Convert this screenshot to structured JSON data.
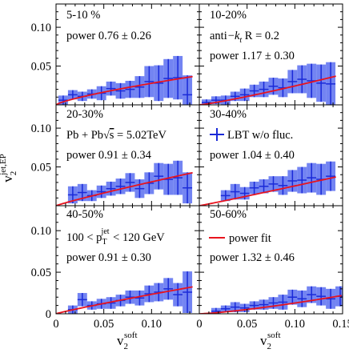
{
  "figure": {
    "y_axis_title": "v",
    "y_axis_sub": "2",
    "y_axis_sup": "jet,EP",
    "x_axis_title": "v",
    "x_axis_sub": "2",
    "x_axis_sup": "soft"
  },
  "legend": {
    "lbt_label": "LBT w/o fluc.",
    "fit_label": "power fit"
  },
  "chart_data": [
    {
      "type": "scatter",
      "panel": "top-left",
      "annotations": [
        "5-10 %",
        "power 0.76 ± 0.26"
      ],
      "xlim": [
        0,
        0.15
      ],
      "ylim": [
        0,
        0.13
      ],
      "x_ticks": [
        "0",
        "0.05",
        "0.10",
        "0.15"
      ],
      "y_ticks": [
        "0",
        "0.05",
        "0.10"
      ],
      "points": [
        {
          "x": 0.0075,
          "y": 0.006,
          "yerr": 0.006
        },
        {
          "x": 0.0175,
          "y": 0.013,
          "yerr": 0.006
        },
        {
          "x": 0.0275,
          "y": 0.011,
          "yerr": 0.006
        },
        {
          "x": 0.0375,
          "y": 0.014,
          "yerr": 0.006
        },
        {
          "x": 0.0475,
          "y": 0.015,
          "yerr": 0.009
        },
        {
          "x": 0.0575,
          "y": 0.021,
          "yerr": 0.009
        },
        {
          "x": 0.0675,
          "y": 0.018,
          "yerr": 0.01
        },
        {
          "x": 0.0775,
          "y": 0.02,
          "yerr": 0.011
        },
        {
          "x": 0.0875,
          "y": 0.023,
          "yerr": 0.014
        },
        {
          "x": 0.0975,
          "y": 0.03,
          "yerr": 0.02
        },
        {
          "x": 0.1075,
          "y": 0.028,
          "yerr": 0.023
        },
        {
          "x": 0.1175,
          "y": 0.034,
          "yerr": 0.025
        },
        {
          "x": 0.1275,
          "y": 0.035,
          "yerr": 0.028
        },
        {
          "x": 0.1375,
          "y": 0.013,
          "yerr": 0.025
        }
      ],
      "fit": {
        "power": 0.76,
        "amplitude": 0.16,
        "x_end": 0.143
      }
    },
    {
      "type": "scatter",
      "panel": "top-right",
      "annotations": [
        "10-20%",
        "anti−kt R = 0.2",
        "power 1.17 ± 0.30"
      ],
      "xlim": [
        0,
        0.15
      ],
      "ylim": [
        0,
        0.13
      ],
      "points": [
        {
          "x": 0.0075,
          "y": 0.003,
          "yerr": 0.004
        },
        {
          "x": 0.0175,
          "y": 0.006,
          "yerr": 0.005
        },
        {
          "x": 0.0275,
          "y": 0.006,
          "yerr": 0.006
        },
        {
          "x": 0.0375,
          "y": 0.011,
          "yerr": 0.006
        },
        {
          "x": 0.0475,
          "y": 0.013,
          "yerr": 0.008
        },
        {
          "x": 0.0575,
          "y": 0.018,
          "yerr": 0.008
        },
        {
          "x": 0.0675,
          "y": 0.02,
          "yerr": 0.01
        },
        {
          "x": 0.0775,
          "y": 0.024,
          "yerr": 0.011
        },
        {
          "x": 0.0875,
          "y": 0.022,
          "yerr": 0.012
        },
        {
          "x": 0.0975,
          "y": 0.03,
          "yerr": 0.015
        },
        {
          "x": 0.1075,
          "y": 0.033,
          "yerr": 0.018
        },
        {
          "x": 0.1175,
          "y": 0.031,
          "yerr": 0.022
        },
        {
          "x": 0.1275,
          "y": 0.028,
          "yerr": 0.024
        },
        {
          "x": 0.1375,
          "y": 0.027,
          "yerr": 0.028
        }
      ],
      "fit": {
        "power": 1.17,
        "amplitude": 0.36,
        "x_end": 0.143
      }
    },
    {
      "type": "scatter",
      "panel": "middle-left",
      "annotations": [
        "20-30%",
        "Pb + Pb√s = 5.02TeV",
        "power 0.91 ± 0.34"
      ],
      "xlim": [
        0,
        0.15
      ],
      "ylim": [
        0,
        0.13
      ],
      "points": [
        {
          "x": 0.0175,
          "y": 0.014,
          "yerr": 0.011
        },
        {
          "x": 0.0275,
          "y": 0.017,
          "yerr": 0.011
        },
        {
          "x": 0.0375,
          "y": 0.013,
          "yerr": 0.007
        },
        {
          "x": 0.0475,
          "y": 0.018,
          "yerr": 0.008
        },
        {
          "x": 0.0575,
          "y": 0.022,
          "yerr": 0.009
        },
        {
          "x": 0.0675,
          "y": 0.025,
          "yerr": 0.01
        },
        {
          "x": 0.0775,
          "y": 0.03,
          "yerr": 0.012
        },
        {
          "x": 0.0875,
          "y": 0.022,
          "yerr": 0.012
        },
        {
          "x": 0.0975,
          "y": 0.029,
          "yerr": 0.014
        },
        {
          "x": 0.1075,
          "y": 0.038,
          "yerr": 0.017
        },
        {
          "x": 0.1175,
          "y": 0.034,
          "yerr": 0.02
        },
        {
          "x": 0.1275,
          "y": 0.036,
          "yerr": 0.022
        },
        {
          "x": 0.1375,
          "y": 0.023,
          "yerr": 0.02
        }
      ],
      "fit": {
        "power": 0.91,
        "amplitude": 0.25,
        "x_end": 0.143
      }
    },
    {
      "type": "scatter",
      "panel": "middle-right",
      "annotations": [
        "30-40%",
        "LBT w/o fluc.",
        "power 1.04 ± 0.40"
      ],
      "xlim": [
        0,
        0.15
      ],
      "ylim": [
        0,
        0.13
      ],
      "points": [
        {
          "x": 0.0275,
          "y": 0.013,
          "yerr": 0.007
        },
        {
          "x": 0.0375,
          "y": 0.018,
          "yerr": 0.01
        },
        {
          "x": 0.0475,
          "y": 0.016,
          "yerr": 0.008
        },
        {
          "x": 0.0575,
          "y": 0.023,
          "yerr": 0.008
        },
        {
          "x": 0.0675,
          "y": 0.025,
          "yerr": 0.009
        },
        {
          "x": 0.0775,
          "y": 0.028,
          "yerr": 0.01
        },
        {
          "x": 0.0875,
          "y": 0.026,
          "yerr": 0.012
        },
        {
          "x": 0.0975,
          "y": 0.032,
          "yerr": 0.014
        },
        {
          "x": 0.1075,
          "y": 0.033,
          "yerr": 0.017
        },
        {
          "x": 0.1175,
          "y": 0.036,
          "yerr": 0.019
        },
        {
          "x": 0.1275,
          "y": 0.034,
          "yerr": 0.02
        },
        {
          "x": 0.1375,
          "y": 0.038,
          "yerr": 0.019
        }
      ],
      "fit": {
        "power": 1.04,
        "amplitude": 0.28,
        "x_end": 0.143
      }
    },
    {
      "type": "scatter",
      "panel": "bottom-left",
      "annotations": [
        "40-50%",
        "100 < pT jet < 120 GeV",
        "power 0.91 ± 0.30"
      ],
      "xlim": [
        0,
        0.15
      ],
      "ylim": [
        0,
        0.13
      ],
      "points": [
        {
          "x": 0.0175,
          "y": 0.005,
          "yerr": 0.005
        },
        {
          "x": 0.0275,
          "y": 0.017,
          "yerr": 0.008
        },
        {
          "x": 0.0375,
          "y": 0.01,
          "yerr": 0.005
        },
        {
          "x": 0.0475,
          "y": 0.012,
          "yerr": 0.006
        },
        {
          "x": 0.0575,
          "y": 0.013,
          "yerr": 0.007
        },
        {
          "x": 0.0675,
          "y": 0.016,
          "yerr": 0.007
        },
        {
          "x": 0.0775,
          "y": 0.02,
          "yerr": 0.008
        },
        {
          "x": 0.0875,
          "y": 0.019,
          "yerr": 0.009
        },
        {
          "x": 0.0975,
          "y": 0.024,
          "yerr": 0.01
        },
        {
          "x": 0.1075,
          "y": 0.026,
          "yerr": 0.011
        },
        {
          "x": 0.1175,
          "y": 0.03,
          "yerr": 0.013
        },
        {
          "x": 0.1275,
          "y": 0.023,
          "yerr": 0.014
        },
        {
          "x": 0.1375,
          "y": 0.026,
          "yerr": 0.025
        }
      ],
      "fit": {
        "power": 0.91,
        "amplitude": 0.19,
        "x_end": 0.143
      }
    },
    {
      "type": "scatter",
      "panel": "bottom-right",
      "annotations": [
        "50-60%",
        "power fit",
        "power 1.32 ± 0.46"
      ],
      "xlim": [
        0,
        0.15
      ],
      "ylim": [
        0,
        0.13
      ],
      "x_ticks": [
        "0",
        "0.05",
        "0.10",
        "0.15"
      ],
      "points": [
        {
          "x": 0.0175,
          "y": 0.003,
          "yerr": 0.004
        },
        {
          "x": 0.0275,
          "y": 0.006,
          "yerr": 0.004
        },
        {
          "x": 0.0375,
          "y": 0.008,
          "yerr": 0.006
        },
        {
          "x": 0.0475,
          "y": 0.007,
          "yerr": 0.005
        },
        {
          "x": 0.0575,
          "y": 0.01,
          "yerr": 0.005
        },
        {
          "x": 0.0675,
          "y": 0.011,
          "yerr": 0.006
        },
        {
          "x": 0.0775,
          "y": 0.013,
          "yerr": 0.007
        },
        {
          "x": 0.0875,
          "y": 0.014,
          "yerr": 0.009
        },
        {
          "x": 0.0975,
          "y": 0.02,
          "yerr": 0.009
        },
        {
          "x": 0.1075,
          "y": 0.018,
          "yerr": 0.01
        },
        {
          "x": 0.1175,
          "y": 0.023,
          "yerr": 0.01
        },
        {
          "x": 0.1275,
          "y": 0.021,
          "yerr": 0.011
        },
        {
          "x": 0.1375,
          "y": 0.018,
          "yerr": 0.012
        },
        {
          "x": 0.1475,
          "y": 0.021,
          "yerr": 0.012
        }
      ],
      "fit": {
        "power": 1.32,
        "amplitude": 0.27,
        "x_end": 0.149
      }
    }
  ],
  "colors": {
    "band": "#5b6ef0",
    "band_opacity": 0.85,
    "marker": "#1a2ad8",
    "fit": "#e8141e",
    "frame": "#000000"
  }
}
